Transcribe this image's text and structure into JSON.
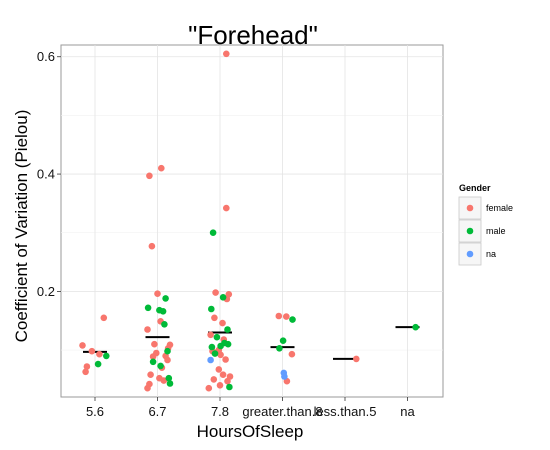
{
  "chart_data": {
    "type": "scatter",
    "title": "\"Forehead\"",
    "xlabel": "HoursOfSleep",
    "ylabel": "Coefficient of Variation (Pielou)",
    "categories": [
      "5.6",
      "6.7",
      "7.8",
      "greater.than.8",
      "less.than.5",
      "na"
    ],
    "ylim": [
      0.02,
      0.62
    ],
    "yticks": [
      0.2,
      0.4,
      0.6
    ],
    "ytick_labels": [
      "0.2",
      "0.4",
      "0.6"
    ],
    "grid": true,
    "legend": {
      "title": "Gender",
      "position": "right",
      "items": [
        {
          "label": "female",
          "color": "#F8766D"
        },
        {
          "label": "male",
          "color": "#00BA38"
        },
        {
          "label": "na",
          "color": "#619CFF"
        }
      ]
    },
    "medians": [
      {
        "category": "5.6",
        "value": 0.097
      },
      {
        "category": "6.7",
        "value": 0.122
      },
      {
        "category": "7.8",
        "value": 0.13
      },
      {
        "category": "greater.than.8",
        "value": 0.105
      },
      {
        "category": "less.than.5",
        "value": 0.085
      },
      {
        "category": "na",
        "value": 0.139
      }
    ],
    "series": [
      {
        "name": "female",
        "color": "#F8766D",
        "points": [
          {
            "category": "5.6",
            "offset": -0.2,
            "y": 0.108
          },
          {
            "category": "5.6",
            "offset": 0.14,
            "y": 0.155
          },
          {
            "category": "5.6",
            "offset": -0.05,
            "y": 0.098
          },
          {
            "category": "5.6",
            "offset": -0.13,
            "y": 0.072
          },
          {
            "category": "5.6",
            "offset": -0.15,
            "y": 0.063
          },
          {
            "category": "5.6",
            "offset": 0.07,
            "y": 0.093
          },
          {
            "category": "6.7",
            "offset": -0.13,
            "y": 0.397
          },
          {
            "category": "6.7",
            "offset": 0.06,
            "y": 0.41
          },
          {
            "category": "6.7",
            "offset": -0.09,
            "y": 0.277
          },
          {
            "category": "6.7",
            "offset": 0.0,
            "y": 0.196
          },
          {
            "category": "6.7",
            "offset": -0.16,
            "y": 0.135
          },
          {
            "category": "6.7",
            "offset": 0.05,
            "y": 0.149
          },
          {
            "category": "6.7",
            "offset": 0.2,
            "y": 0.109
          },
          {
            "category": "6.7",
            "offset": 0.17,
            "y": 0.103
          },
          {
            "category": "6.7",
            "offset": -0.05,
            "y": 0.11
          },
          {
            "category": "6.7",
            "offset": 0.13,
            "y": 0.09
          },
          {
            "category": "6.7",
            "offset": -0.02,
            "y": 0.095
          },
          {
            "category": "6.7",
            "offset": 0.16,
            "y": 0.083
          },
          {
            "category": "6.7",
            "offset": -0.07,
            "y": 0.089
          },
          {
            "category": "6.7",
            "offset": 0.07,
            "y": 0.07
          },
          {
            "category": "6.7",
            "offset": -0.11,
            "y": 0.058
          },
          {
            "category": "6.7",
            "offset": 0.1,
            "y": 0.048
          },
          {
            "category": "6.7",
            "offset": -0.13,
            "y": 0.042
          },
          {
            "category": "6.7",
            "offset": -0.16,
            "y": 0.035
          },
          {
            "category": "6.7",
            "offset": 0.03,
            "y": 0.052
          },
          {
            "category": "7.8",
            "offset": 0.1,
            "y": 0.605
          },
          {
            "category": "7.8",
            "offset": 0.1,
            "y": 0.342
          },
          {
            "category": "7.8",
            "offset": -0.07,
            "y": 0.198
          },
          {
            "category": "7.8",
            "offset": 0.14,
            "y": 0.195
          },
          {
            "category": "7.8",
            "offset": 0.11,
            "y": 0.187
          },
          {
            "category": "7.8",
            "offset": -0.09,
            "y": 0.155
          },
          {
            "category": "7.8",
            "offset": 0.04,
            "y": 0.146
          },
          {
            "category": "7.8",
            "offset": -0.15,
            "y": 0.126
          },
          {
            "category": "7.8",
            "offset": 0.06,
            "y": 0.118
          },
          {
            "category": "7.8",
            "offset": -0.02,
            "y": 0.1
          },
          {
            "category": "7.8",
            "offset": 0.01,
            "y": 0.092
          },
          {
            "category": "7.8",
            "offset": -0.12,
            "y": 0.098
          },
          {
            "category": "7.8",
            "offset": 0.09,
            "y": 0.084
          },
          {
            "category": "7.8",
            "offset": -0.02,
            "y": 0.067
          },
          {
            "category": "7.8",
            "offset": 0.05,
            "y": 0.058
          },
          {
            "category": "7.8",
            "offset": -0.1,
            "y": 0.05
          },
          {
            "category": "7.8",
            "offset": 0.12,
            "y": 0.047
          },
          {
            "category": "7.8",
            "offset": -0.18,
            "y": 0.035
          },
          {
            "category": "7.8",
            "offset": 0.0,
            "y": 0.04
          },
          {
            "category": "7.8",
            "offset": 0.16,
            "y": 0.055
          },
          {
            "category": "greater.than.8",
            "offset": -0.06,
            "y": 0.158
          },
          {
            "category": "greater.than.8",
            "offset": 0.06,
            "y": 0.157
          },
          {
            "category": "greater.than.8",
            "offset": 0.15,
            "y": 0.093
          },
          {
            "category": "greater.than.8",
            "offset": 0.07,
            "y": 0.047
          },
          {
            "category": "less.than.5",
            "offset": 0.18,
            "y": 0.085
          }
        ]
      },
      {
        "name": "male",
        "color": "#00BA38",
        "points": [
          {
            "category": "5.6",
            "offset": 0.18,
            "y": 0.09
          },
          {
            "category": "5.6",
            "offset": 0.05,
            "y": 0.076
          },
          {
            "category": "6.7",
            "offset": -0.15,
            "y": 0.172
          },
          {
            "category": "6.7",
            "offset": 0.13,
            "y": 0.188
          },
          {
            "category": "6.7",
            "offset": 0.03,
            "y": 0.168
          },
          {
            "category": "6.7",
            "offset": 0.09,
            "y": 0.166
          },
          {
            "category": "6.7",
            "offset": 0.11,
            "y": 0.144
          },
          {
            "category": "6.7",
            "offset": 0.16,
            "y": 0.098
          },
          {
            "category": "6.7",
            "offset": -0.07,
            "y": 0.08
          },
          {
            "category": "6.7",
            "offset": 0.05,
            "y": 0.073
          },
          {
            "category": "6.7",
            "offset": 0.18,
            "y": 0.052
          },
          {
            "category": "6.7",
            "offset": 0.2,
            "y": 0.043
          },
          {
            "category": "7.8",
            "offset": -0.11,
            "y": 0.3
          },
          {
            "category": "7.8",
            "offset": 0.05,
            "y": 0.19
          },
          {
            "category": "7.8",
            "offset": -0.14,
            "y": 0.17
          },
          {
            "category": "7.8",
            "offset": 0.12,
            "y": 0.135
          },
          {
            "category": "7.8",
            "offset": -0.05,
            "y": 0.122
          },
          {
            "category": "7.8",
            "offset": 0.07,
            "y": 0.112
          },
          {
            "category": "7.8",
            "offset": 0.13,
            "y": 0.11
          },
          {
            "category": "7.8",
            "offset": -0.13,
            "y": 0.105
          },
          {
            "category": "7.8",
            "offset": 0.01,
            "y": 0.107
          },
          {
            "category": "7.8",
            "offset": -0.08,
            "y": 0.094
          },
          {
            "category": "7.8",
            "offset": 0.15,
            "y": 0.037
          },
          {
            "category": "greater.than.8",
            "offset": 0.16,
            "y": 0.152
          },
          {
            "category": "greater.than.8",
            "offset": 0.01,
            "y": 0.116
          },
          {
            "category": "greater.than.8",
            "offset": -0.05,
            "y": 0.103
          },
          {
            "category": "na",
            "offset": 0.13,
            "y": 0.139
          }
        ]
      },
      {
        "name": "na",
        "color": "#619CFF",
        "points": [
          {
            "category": "7.8",
            "offset": -0.15,
            "y": 0.083
          },
          {
            "category": "greater.than.8",
            "offset": 0.02,
            "y": 0.061
          },
          {
            "category": "greater.than.8",
            "offset": 0.03,
            "y": 0.055
          }
        ]
      }
    ]
  }
}
